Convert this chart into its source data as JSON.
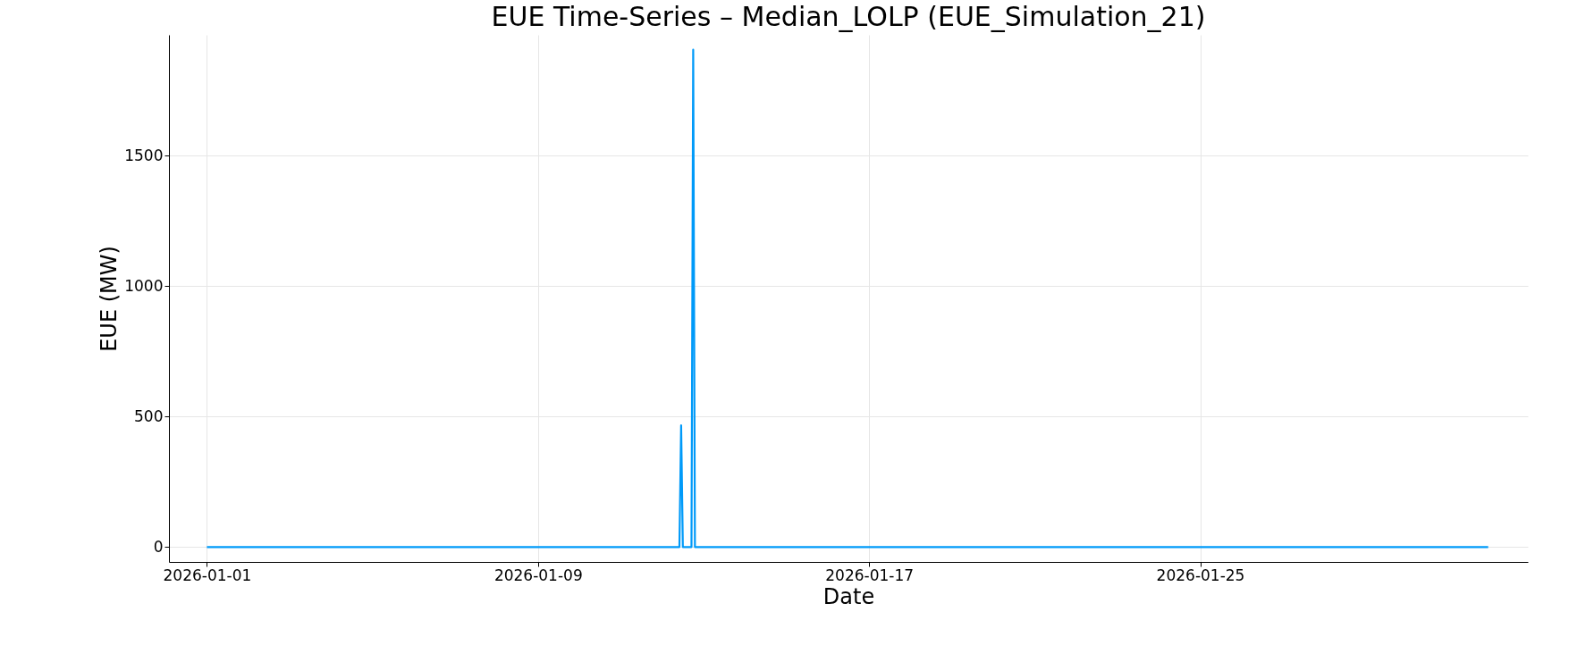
{
  "chart_data": {
    "type": "line",
    "title": "EUE Time-Series – Median_LOLP (EUE_Simulation_21)",
    "xlabel": "Date",
    "ylabel": "EUE (MW)",
    "x": [
      "2026-01-01T00:00",
      "2026-01-12T10:00",
      "2026-01-12T11:00",
      "2026-01-12T12:00",
      "2026-01-12T17:00",
      "2026-01-12T18:00",
      "2026-01-12T19:00",
      "2026-01-31T23:00"
    ],
    "series": [
      {
        "color": "#009af9",
        "values": [
          0,
          0,
          466,
          0,
          0,
          1905,
          0,
          0
        ]
      }
    ],
    "xlim": [
      "2025-12-31T02:00",
      "2026-02-01T22:00"
    ],
    "xticks": [
      "2026-01-01",
      "2026-01-09",
      "2026-01-17",
      "2026-01-25"
    ],
    "ylim": [
      -57,
      1962
    ],
    "yticks": [
      0,
      500,
      1000,
      1500
    ],
    "grid": true,
    "marker": "none",
    "line_style": "solid"
  }
}
